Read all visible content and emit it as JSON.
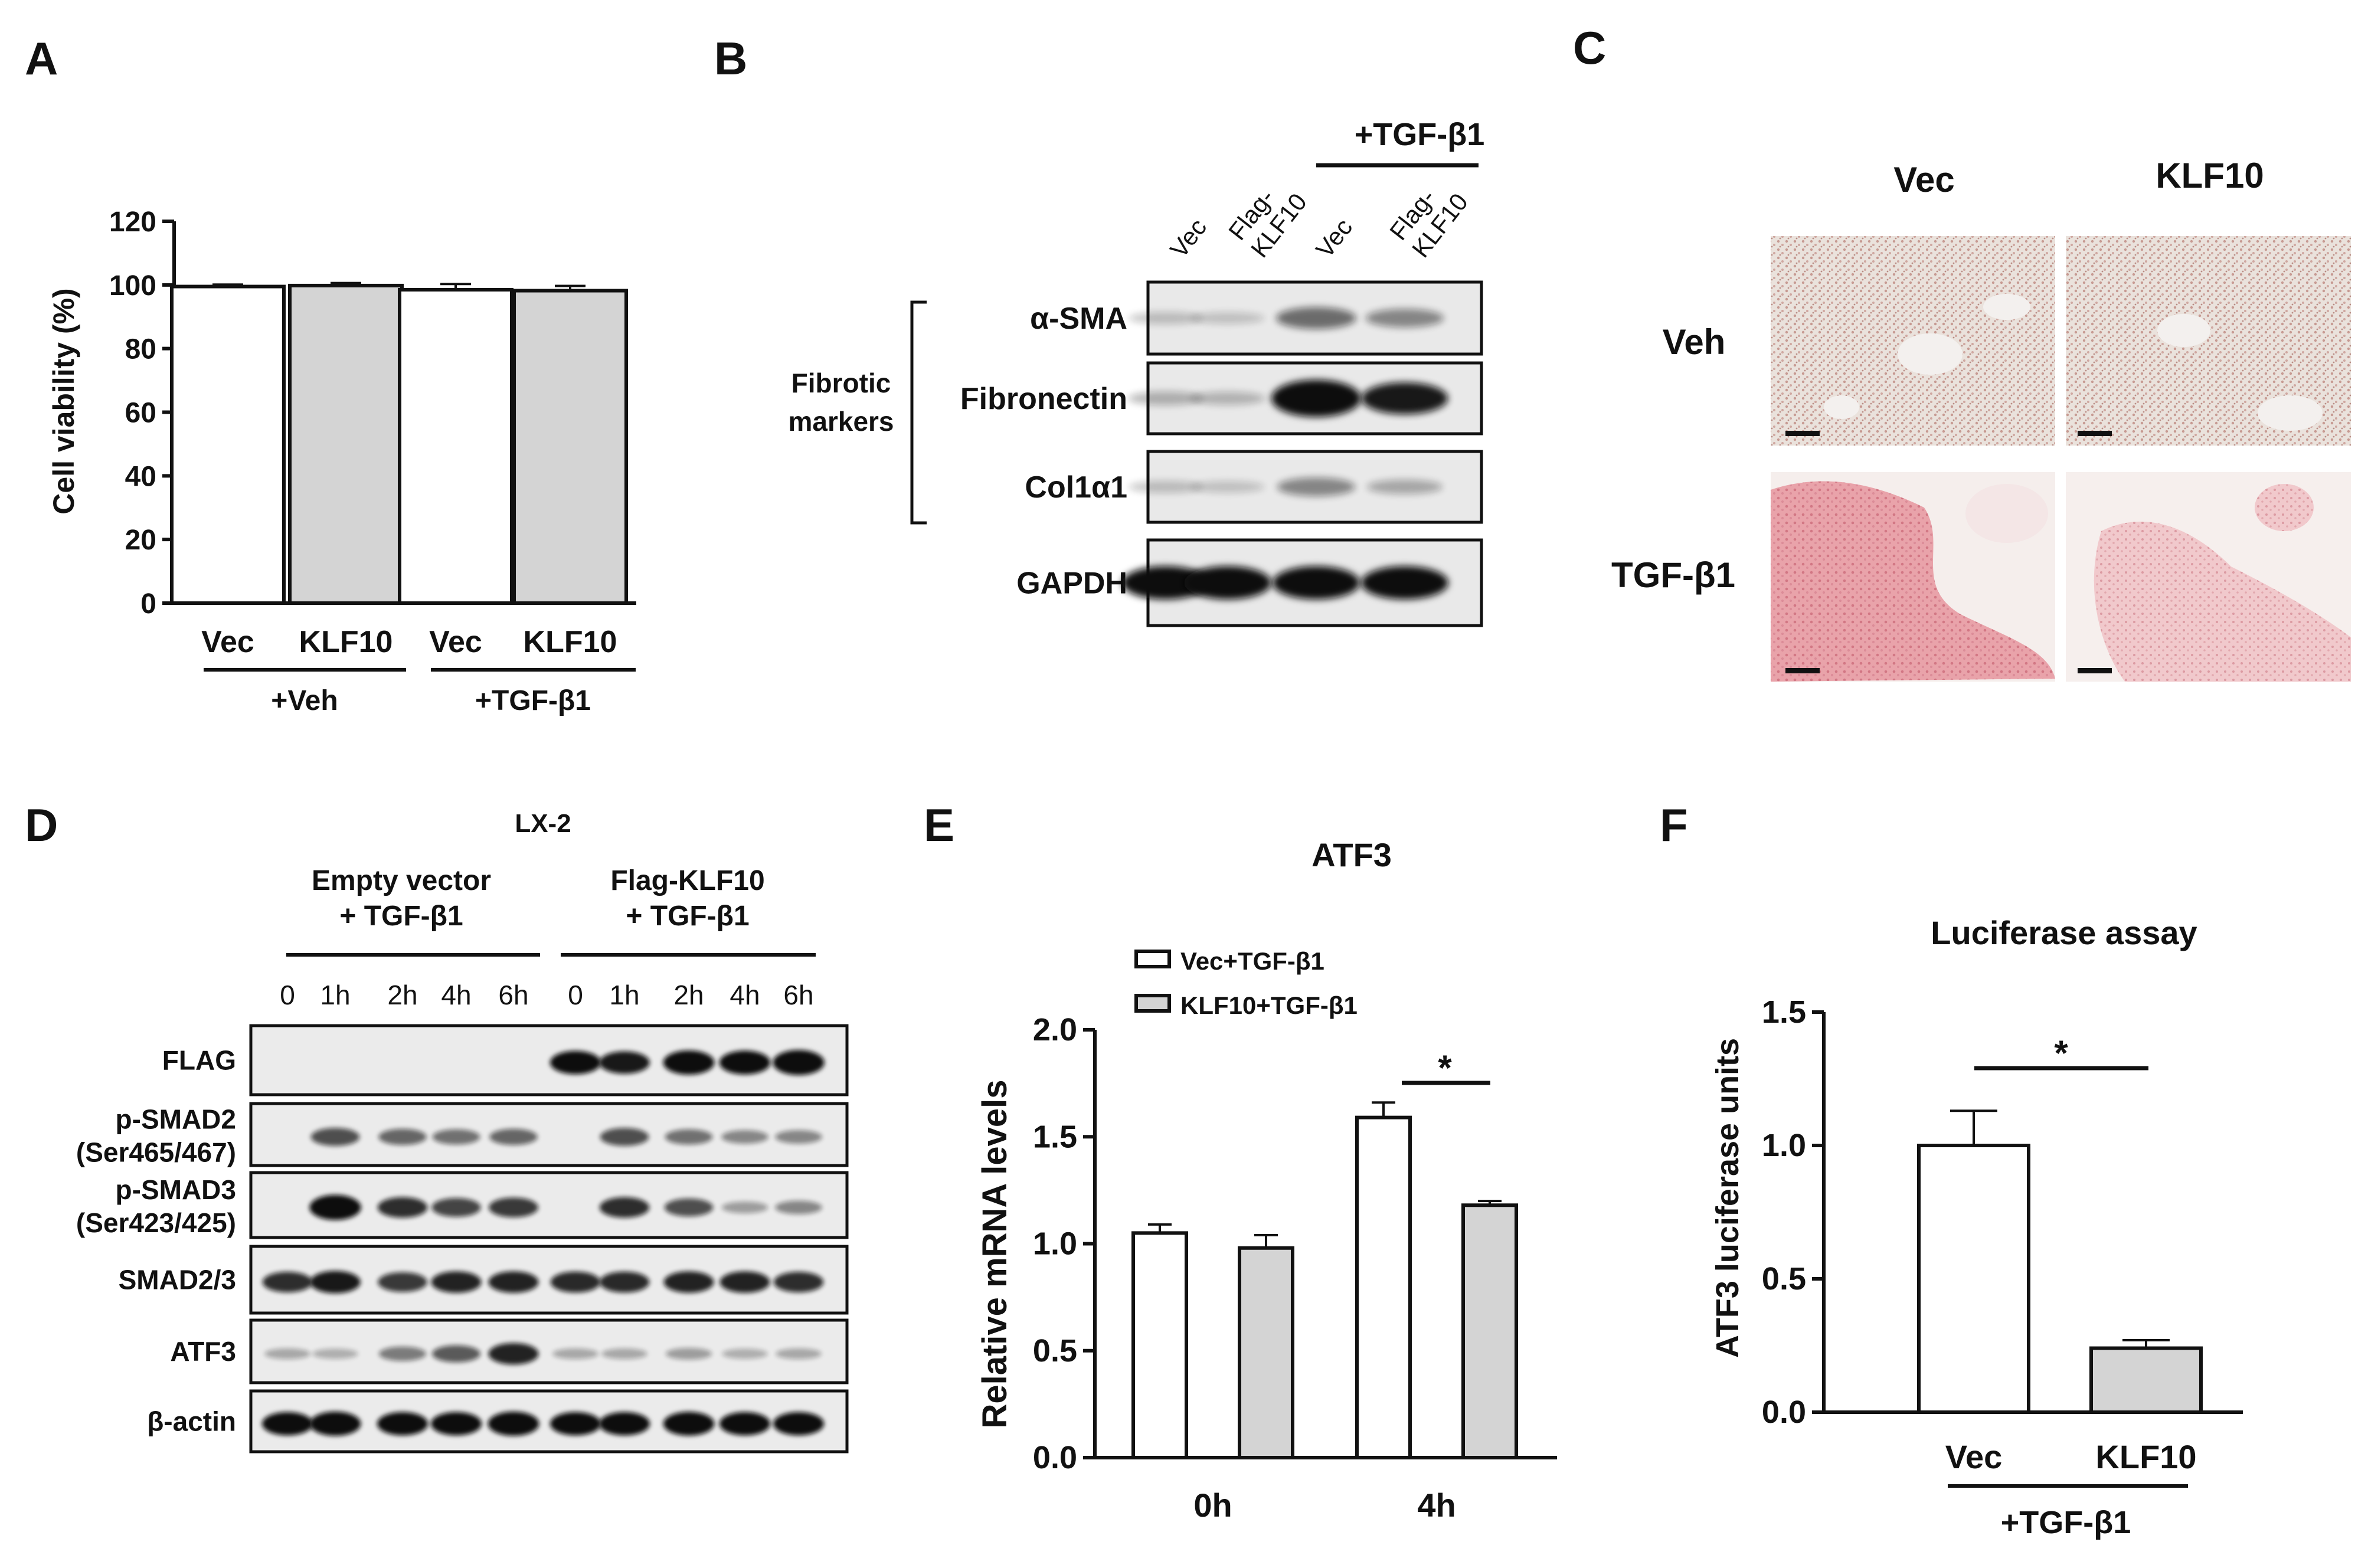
{
  "panels": {
    "A": {
      "letter": "A",
      "chart_data": {
        "type": "bar",
        "ylabel": "Cell viability (%)",
        "ylim": [
          0,
          120
        ],
        "yticks": [
          "0",
          "20",
          "40",
          "60",
          "80",
          "100",
          "120"
        ],
        "categories": [
          "Vec",
          "KLF10",
          "Vec",
          "KLF10"
        ],
        "values": [
          99.5,
          99.8,
          98.5,
          98.2
        ],
        "errors": [
          0.6,
          0.8,
          1.8,
          1.5
        ],
        "colors": [
          "#ffffff",
          "#d4d4d4",
          "#ffffff",
          "#d4d4d4"
        ],
        "groups": [
          "+Veh",
          "+TGF-β1"
        ]
      }
    },
    "B": {
      "letter": "B",
      "treatment": "+TGF-β1",
      "lanes": [
        "Vec",
        "Flag-\nKLF10",
        "Vec",
        "Flag-\nKLF10"
      ],
      "bracket_label_1": "Fibrotic",
      "bracket_label_2": "markers",
      "rows": [
        {
          "label": "α-SMA",
          "intensity": [
            0.06,
            0.04,
            0.42,
            0.3
          ]
        },
        {
          "label": "Fibronectin",
          "intensity": [
            0.12,
            0.1,
            1.0,
            0.8
          ]
        },
        {
          "label": "Col1α1",
          "intensity": [
            0.06,
            0.04,
            0.3,
            0.15
          ]
        },
        {
          "label": "GAPDH",
          "intensity": [
            0.85,
            0.85,
            0.85,
            0.85
          ]
        }
      ]
    },
    "C": {
      "letter": "C",
      "col_labels": [
        "Vec",
        "KLF10"
      ],
      "row_labels": [
        "Veh",
        "TGF-β1"
      ]
    },
    "D": {
      "letter": "D",
      "cell_line": "LX-2",
      "group1_line1": "Empty vector",
      "group1_line2": "+ TGF-β1",
      "group2_line1": "Flag-KLF10",
      "group2_line2": "+ TGF-β1",
      "timepoints": [
        "0",
        "1h",
        "2h",
        "4h",
        "6h",
        "0",
        "1h",
        "2h",
        "4h",
        "6h"
      ],
      "rows": [
        {
          "label_1": "FLAG",
          "label_2": "",
          "intensity": [
            0,
            0,
            0,
            0,
            0,
            0.85,
            0.8,
            0.9,
            0.88,
            0.95
          ]
        },
        {
          "label_1": "p-SMAD2",
          "label_2": "(Ser465/467)",
          "intensity": [
            0,
            0.55,
            0.45,
            0.4,
            0.45,
            0,
            0.55,
            0.4,
            0.3,
            0.3
          ]
        },
        {
          "label_1": "p-SMAD3",
          "label_2": "(Ser423/425)",
          "intensity": [
            0,
            0.95,
            0.7,
            0.6,
            0.65,
            0,
            0.7,
            0.55,
            0.2,
            0.3
          ]
        },
        {
          "label_1": "SMAD2/3",
          "label_2": "",
          "intensity": [
            0.7,
            0.8,
            0.65,
            0.75,
            0.75,
            0.72,
            0.72,
            0.75,
            0.75,
            0.7
          ]
        },
        {
          "label_1": "ATF3",
          "label_2": "",
          "intensity": [
            0.15,
            0.12,
            0.35,
            0.5,
            0.75,
            0.15,
            0.15,
            0.2,
            0.12,
            0.15
          ]
        },
        {
          "label_1": "β-actin",
          "label_2": "",
          "intensity": [
            0.85,
            0.9,
            0.85,
            0.85,
            0.9,
            0.85,
            0.85,
            0.88,
            0.85,
            0.85
          ]
        }
      ]
    },
    "E": {
      "letter": "E",
      "chart_data": {
        "type": "bar",
        "title": "ATF3",
        "ylabel": "Relative mRNA levels",
        "ylim": [
          0,
          2.0
        ],
        "yticks": [
          "0.0",
          "0.5",
          "1.0",
          "1.5",
          "2.0"
        ],
        "categories": [
          "0h",
          "4h"
        ],
        "series": [
          {
            "name": "Vec+TGF-β1",
            "values": [
              1.05,
              1.59
            ],
            "errors": [
              0.04,
              0.07
            ],
            "color": "#ffffff"
          },
          {
            "name": "KLF10+TGF-β1",
            "values": [
              0.98,
              1.18
            ],
            "errors": [
              0.06,
              0.02
            ],
            "color": "#d4d4d4"
          }
        ],
        "significance": "*"
      }
    },
    "F": {
      "letter": "F",
      "chart_data": {
        "type": "bar",
        "title": "Luciferase assay",
        "ylabel": "ATF3 luciferase units",
        "ylim": [
          0,
          1.5
        ],
        "yticks": [
          "0.0",
          "0.5",
          "1.0",
          "1.5"
        ],
        "categories": [
          "Vec",
          "KLF10"
        ],
        "values": [
          1.0,
          0.24
        ],
        "errors": [
          0.13,
          0.03
        ],
        "colors": [
          "#ffffff",
          "#d4d4d4"
        ],
        "group": "+TGF-β1",
        "significance": "*"
      }
    }
  }
}
